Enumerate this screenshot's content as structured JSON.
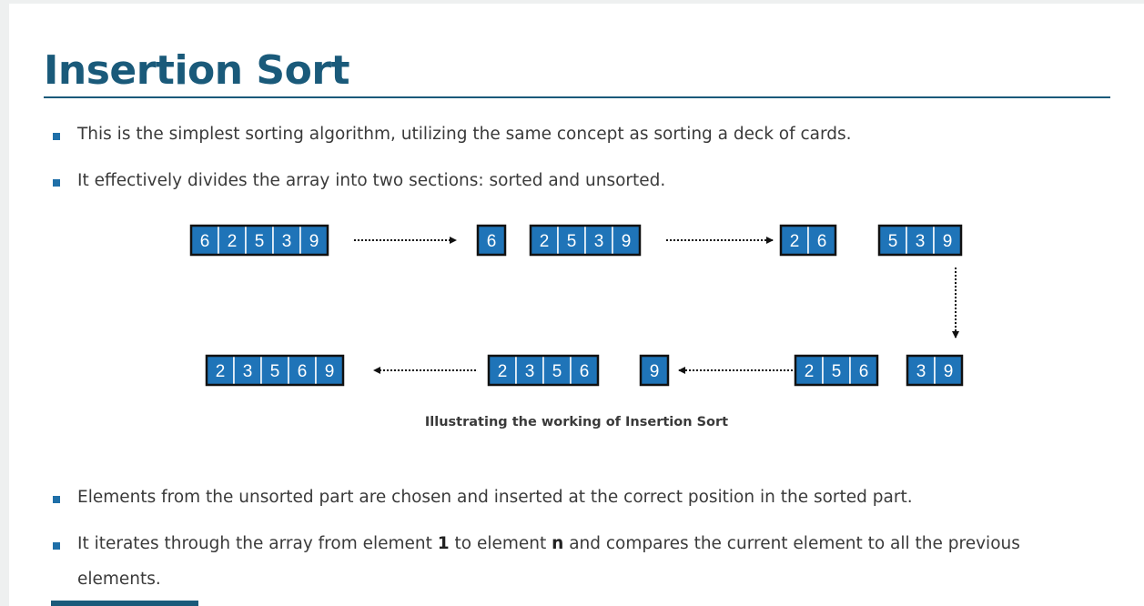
{
  "slide": {
    "title": "Insertion Sort",
    "bullets_top": [
      "This is the simplest sorting algorithm, utilizing the same concept as sorting a deck of cards.",
      "It effectively divides the array into two sections: sorted and unsorted."
    ],
    "caption": "Illustrating the working of Insertion Sort",
    "bullet_3": "Elements from the unsorted part are chosen and inserted at the correct position in the sorted part.",
    "bullet_4": {
      "part1": "It iterates through the array from element ",
      "bold1": "1",
      "part2": " to element ",
      "bold2": "n",
      "part3": " and compares the current element to all the previous",
      "line2": "elements."
    }
  },
  "diagram": {
    "colors": {
      "cell_fill": "#1f74b8",
      "cell_border": "#111111",
      "cell_text": "#ffffff",
      "arrow": "#111111"
    },
    "row1": [
      [
        "6",
        "2",
        "5",
        "3",
        "9"
      ],
      [
        "6"
      ],
      [
        "2",
        "5",
        "3",
        "9"
      ],
      [
        "2",
        "6"
      ],
      [
        "5",
        "3",
        "9"
      ]
    ],
    "row2": [
      [
        "2",
        "3",
        "5",
        "6",
        "9"
      ],
      [
        "2",
        "3",
        "5",
        "6"
      ],
      [
        "9"
      ],
      [
        "2",
        "5",
        "6"
      ],
      [
        "3",
        "9"
      ]
    ]
  }
}
